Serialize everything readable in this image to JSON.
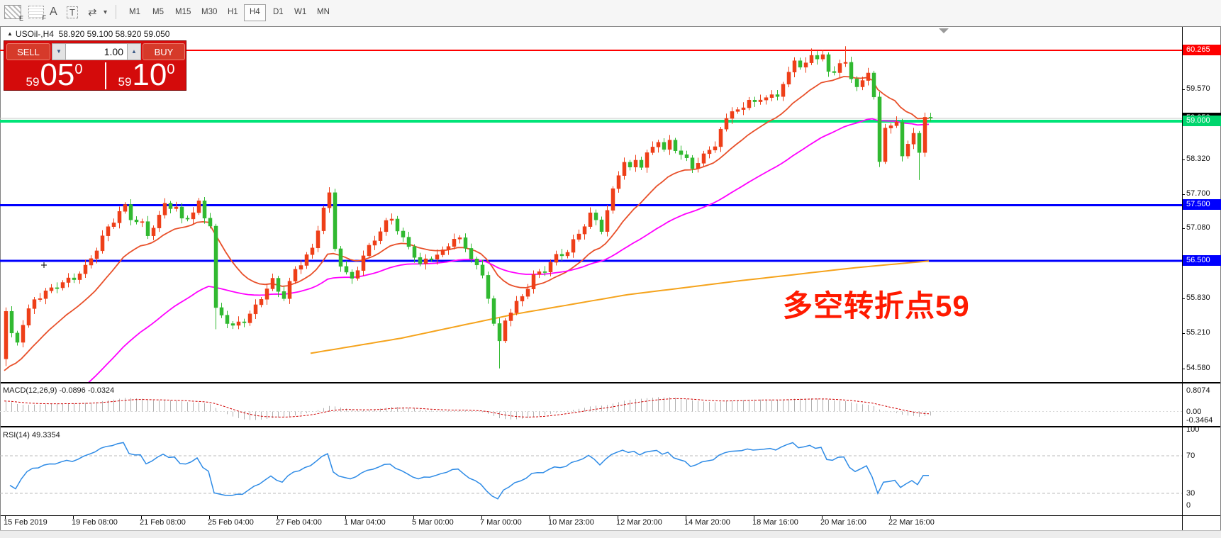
{
  "toolbar": {
    "tools": [
      {
        "name": "chart-style-icon",
        "sub": "E"
      },
      {
        "name": "grid-icon",
        "sub": "F"
      },
      {
        "name": "text-label-icon",
        "glyph": "A"
      },
      {
        "name": "text-tool-icon",
        "glyph": "T"
      },
      {
        "name": "arrows-icon",
        "glyph": "⇄"
      },
      {
        "name": "dropdown-caret-icon",
        "glyph": "▾"
      }
    ],
    "timeframes": [
      "M1",
      "M5",
      "M15",
      "M30",
      "H1",
      "H4",
      "D1",
      "W1",
      "MN"
    ],
    "selected_timeframe": "H4"
  },
  "window": {
    "collapse_glyph": "▲",
    "symbol": "USOil-,H4",
    "ohlc": "58.920 59.100 58.920 59.050"
  },
  "trade_panel": {
    "sell_label": "SELL",
    "buy_label": "BUY",
    "volume": "1.00",
    "spin_down_glyph": "▼",
    "spin_up_glyph": "▲",
    "sell_price": {
      "small": "59",
      "big": "05",
      "sup": "0"
    },
    "buy_price": {
      "small": "59",
      "big": "10",
      "sup": "0"
    }
  },
  "annotation": {
    "text": "多空转折点59",
    "color": "#ff1a00"
  },
  "macd_panel": {
    "name": "MACD(12,26,9)",
    "value": "-0.0896",
    "signal": "-0.0324",
    "axis": [
      "0.8074",
      "0.00",
      "-0.3464"
    ]
  },
  "rsi_panel": {
    "name": "RSI(14)",
    "value": "49.3354",
    "axis": [
      "100",
      "70",
      "30",
      "0"
    ],
    "levels": [
      70,
      30
    ],
    "line_color": "#2e8be6"
  },
  "time_axis": {
    "labels": [
      "15 Feb 2019",
      "19 Feb 08:00",
      "21 Feb 08:00",
      "25 Feb 04:00",
      "27 Feb 04:00",
      "1 Mar 04:00",
      "5 Mar 00:00",
      "7 Mar 00:00",
      "10 Mar 23:00",
      "12 Mar 20:00",
      "14 Mar 20:00",
      "18 Mar 16:00",
      "20 Mar 16:00",
      "22 Mar 16:00"
    ]
  },
  "chart_data": {
    "type": "candlestick",
    "symbol": "USOil",
    "timeframe": "H4",
    "count": 164,
    "first_open": 54.75,
    "close_anchors": [
      [
        0,
        55.6
      ],
      [
        1,
        55.15
      ],
      [
        2,
        55.05
      ],
      [
        3,
        55.35
      ],
      [
        5,
        55.8
      ],
      [
        7,
        55.95
      ],
      [
        9,
        56.1
      ],
      [
        12,
        56.2
      ],
      [
        14,
        56.35
      ],
      [
        16,
        56.7
      ],
      [
        18,
        57.1
      ],
      [
        20,
        57.4
      ],
      [
        21,
        57.5
      ],
      [
        22,
        57.3
      ],
      [
        24,
        57.15
      ],
      [
        25,
        56.95
      ],
      [
        27,
        57.25
      ],
      [
        28,
        57.5
      ],
      [
        30,
        57.45
      ],
      [
        31,
        57.25
      ],
      [
        33,
        57.4
      ],
      [
        34,
        57.55
      ],
      [
        35,
        57.3
      ],
      [
        36,
        57.15
      ],
      [
        37,
        55.6
      ],
      [
        38,
        55.5
      ],
      [
        40,
        55.3
      ],
      [
        42,
        55.45
      ],
      [
        44,
        55.7
      ],
      [
        46,
        56.05
      ],
      [
        47,
        56.15
      ],
      [
        48,
        55.95
      ],
      [
        49,
        55.85
      ],
      [
        51,
        56.3
      ],
      [
        53,
        56.6
      ],
      [
        54,
        56.7
      ],
      [
        55,
        57.1
      ],
      [
        56,
        57.5
      ],
      [
        57,
        57.7
      ],
      [
        58,
        56.75
      ],
      [
        59,
        56.45
      ],
      [
        60,
        56.25
      ],
      [
        61,
        56.15
      ],
      [
        63,
        56.55
      ],
      [
        65,
        56.9
      ],
      [
        67,
        57.2
      ],
      [
        68,
        57.3
      ],
      [
        70,
        56.9
      ],
      [
        72,
        56.6
      ],
      [
        73,
        56.4
      ],
      [
        75,
        56.55
      ],
      [
        77,
        56.65
      ],
      [
        79,
        56.95
      ],
      [
        80,
        56.9
      ],
      [
        82,
        56.6
      ],
      [
        84,
        56.2
      ],
      [
        85,
        55.85
      ],
      [
        86,
        55.35
      ],
      [
        87,
        55.0
      ],
      [
        88,
        55.45
      ],
      [
        89,
        55.6
      ],
      [
        91,
        55.9
      ],
      [
        93,
        56.25
      ],
      [
        95,
        56.35
      ],
      [
        97,
        56.55
      ],
      [
        99,
        56.65
      ],
      [
        101,
        57.0
      ],
      [
        103,
        57.35
      ],
      [
        104,
        57.25
      ],
      [
        105,
        57.1
      ],
      [
        106,
        57.4
      ],
      [
        107,
        57.75
      ],
      [
        108,
        58.05
      ],
      [
        109,
        58.25
      ],
      [
        110,
        58.1
      ],
      [
        111,
        58.3
      ],
      [
        112,
        58.2
      ],
      [
        113,
        58.4
      ],
      [
        115,
        58.7
      ],
      [
        116,
        58.5
      ],
      [
        117,
        58.65
      ],
      [
        119,
        58.4
      ],
      [
        121,
        58.15
      ],
      [
        123,
        58.35
      ],
      [
        125,
        58.6
      ],
      [
        126,
        58.85
      ],
      [
        128,
        59.25
      ],
      [
        130,
        59.2
      ],
      [
        131,
        59.4
      ],
      [
        133,
        59.3
      ],
      [
        135,
        59.5
      ],
      [
        136,
        59.4
      ],
      [
        137,
        59.65
      ],
      [
        138,
        59.95
      ],
      [
        139,
        60.1
      ],
      [
        140,
        59.95
      ],
      [
        141,
        60.1
      ],
      [
        142,
        60.2
      ],
      [
        143,
        60.05
      ],
      [
        144,
        60.18
      ],
      [
        145,
        59.9
      ],
      [
        146,
        59.8
      ],
      [
        147,
        60.0
      ],
      [
        148,
        60.1
      ],
      [
        149,
        59.75
      ],
      [
        150,
        59.6
      ],
      [
        151,
        59.8
      ],
      [
        152,
        59.9
      ],
      [
        153,
        59.4
      ],
      [
        154,
        58.3
      ],
      [
        155,
        58.9
      ],
      [
        156,
        58.85
      ],
      [
        157,
        58.95
      ],
      [
        158,
        58.4
      ],
      [
        159,
        58.55
      ],
      [
        160,
        58.75
      ],
      [
        161,
        58.5
      ],
      [
        162,
        59.1
      ],
      [
        163,
        59.05
      ]
    ],
    "overrides": {
      "0": {
        "low": 54.62
      },
      "37": {
        "low": 55.28
      },
      "57": {
        "high": 57.82
      },
      "87": {
        "low": 54.58
      },
      "142": {
        "high": 60.3
      },
      "148": {
        "high": 60.34
      },
      "161": {
        "low": 57.95
      }
    },
    "bull_color": "#ee3f18",
    "bear_color": "#31b931",
    "ma": {
      "red": {
        "period": 16,
        "seed": 54.4,
        "color": "#e8502a"
      },
      "magenta": {
        "period": 48,
        "seed": 52.8,
        "color": "#ff00ff"
      },
      "orange": {
        "color": "#f5a31c",
        "anchors": [
          [
            54,
            54.85
          ],
          [
            70,
            55.12
          ],
          [
            90,
            55.55
          ],
          [
            110,
            55.9
          ],
          [
            130,
            56.15
          ],
          [
            150,
            56.38
          ],
          [
            163,
            56.5
          ]
        ]
      }
    },
    "macd": {
      "fast": 12,
      "slow": 26,
      "signal": 9,
      "hist_color": "#b0b0b0",
      "signal_color": "#d00000"
    },
    "rsi": {
      "period": 14
    },
    "levels": [
      {
        "price": 60.265,
        "color": "#fe0000",
        "width": 2,
        "label": "60.265",
        "label_bg": "#fe0000"
      },
      {
        "price": 59.05,
        "color": "#c8c8c8",
        "width": 1,
        "label": "59.050",
        "label_bg": "#000000"
      },
      {
        "price": 59.0,
        "color": "#00e478",
        "width": 4,
        "label": "59.000",
        "label_bg": "#00d66e"
      },
      {
        "price": 57.5,
        "color": "#0000fe",
        "width": 3,
        "label": "57.500",
        "label_bg": "#0000fe"
      },
      {
        "price": 56.5,
        "color": "#0000fe",
        "width": 3,
        "label": "56.500",
        "label_bg": "#0000fe"
      }
    ],
    "price_ticks": [
      59.57,
      58.32,
      57.7,
      57.08,
      55.83,
      55.21,
      54.58
    ],
    "macd_axis_values": [
      0.8074,
      0.0,
      -0.3464
    ],
    "rsi_axis_values": [
      100,
      70,
      30,
      0
    ]
  }
}
